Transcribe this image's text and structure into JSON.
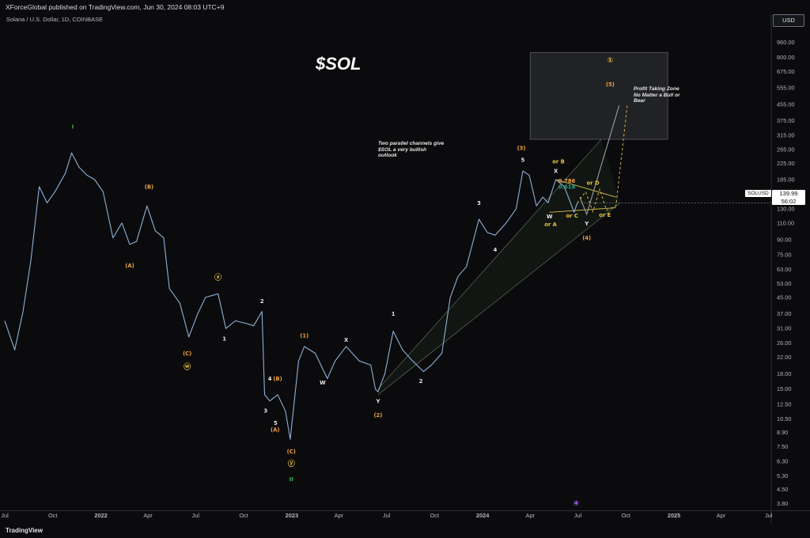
{
  "header": {
    "publisher": "XForceGlobal published on TradingView.com, Jun 30, 2024 08:03 UTC+9",
    "symbol_line": "Solana / U.S. Dollar, 1D, COINBASE",
    "currency_button": "USD"
  },
  "footer": {
    "brand": "TradingView"
  },
  "chart_data": {
    "type": "line",
    "title": "$SOL",
    "symbol_tag": "SOLUSD",
    "last_price": "139.99",
    "countdown": "56:02",
    "y_scale": "log",
    "ylim": [
      3.5,
      1200
    ],
    "y_ticks": [
      "960.00",
      "800.00",
      "675.00",
      "555.00",
      "455.00",
      "375.00",
      "315.00",
      "265.00",
      "225.00",
      "185.00",
      "155.00",
      "130.00",
      "110.00",
      "90.00",
      "75.00",
      "63.00",
      "53.00",
      "45.00",
      "37.00",
      "31.00",
      "26.00",
      "22.00",
      "18.00",
      "15.00",
      "12.50",
      "10.50",
      "8.90",
      "7.50",
      "6.30",
      "5.30",
      "4.50",
      "3.80"
    ],
    "x_ticks": [
      "Jul",
      "Oct",
      "2022",
      "Apr",
      "Jul",
      "Oct",
      "2023",
      "Apr",
      "Jul",
      "Oct",
      "2024",
      "Apr",
      "Jul",
      "Oct",
      "2025",
      "Apr",
      "Jul"
    ],
    "x_tick_dates": [
      "2021-07-01",
      "2021-10-01",
      "2022-01-01",
      "2022-04-01",
      "2022-07-01",
      "2022-10-01",
      "2023-01-01",
      "2023-04-01",
      "2023-07-01",
      "2023-10-01",
      "2024-01-01",
      "2024-04-01",
      "2024-07-01",
      "2024-10-01",
      "2025-01-01",
      "2025-04-01",
      "2025-07-01"
    ],
    "series": [
      {
        "values": [
          [
            "2021-07-01",
            34
          ],
          [
            "2021-07-20",
            24
          ],
          [
            "2021-08-05",
            38
          ],
          [
            "2021-08-20",
            70
          ],
          [
            "2021-09-05",
            170
          ],
          [
            "2021-09-20",
            140
          ],
          [
            "2021-10-05",
            160
          ],
          [
            "2021-10-25",
            200
          ],
          [
            "2021-11-06",
            255
          ],
          [
            "2021-11-20",
            215
          ],
          [
            "2021-12-05",
            195
          ],
          [
            "2021-12-20",
            185
          ],
          [
            "2022-01-05",
            160
          ],
          [
            "2022-01-24",
            92
          ],
          [
            "2022-02-10",
            110
          ],
          [
            "2022-02-25",
            85
          ],
          [
            "2022-03-10",
            88
          ],
          [
            "2022-03-30",
            135
          ],
          [
            "2022-04-15",
            100
          ],
          [
            "2022-05-01",
            92
          ],
          [
            "2022-05-12",
            50
          ],
          [
            "2022-06-01",
            42
          ],
          [
            "2022-06-18",
            28
          ],
          [
            "2022-07-05",
            37
          ],
          [
            "2022-07-20",
            45
          ],
          [
            "2022-08-13",
            47
          ],
          [
            "2022-08-28",
            31
          ],
          [
            "2022-09-15",
            34
          ],
          [
            "2022-10-05",
            33
          ],
          [
            "2022-10-20",
            32
          ],
          [
            "2022-11-05",
            38
          ],
          [
            "2022-11-10",
            14
          ],
          [
            "2022-11-20",
            13
          ],
          [
            "2022-12-05",
            14
          ],
          [
            "2022-12-20",
            11.5
          ],
          [
            "2022-12-29",
            8.2
          ],
          [
            "2023-01-14",
            21
          ],
          [
            "2023-01-25",
            25
          ],
          [
            "2023-02-15",
            23
          ],
          [
            "2023-03-10",
            17
          ],
          [
            "2023-03-25",
            21
          ],
          [
            "2023-04-15",
            25
          ],
          [
            "2023-05-10",
            21
          ],
          [
            "2023-06-01",
            20
          ],
          [
            "2023-06-10",
            15
          ],
          [
            "2023-06-15",
            14.5
          ],
          [
            "2023-06-28",
            18
          ],
          [
            "2023-07-14",
            30
          ],
          [
            "2023-08-01",
            24
          ],
          [
            "2023-08-20",
            21
          ],
          [
            "2023-09-10",
            18.5
          ],
          [
            "2023-09-25",
            20
          ],
          [
            "2023-10-15",
            23
          ],
          [
            "2023-10-31",
            45
          ],
          [
            "2023-11-15",
            58
          ],
          [
            "2023-12-01",
            65
          ],
          [
            "2023-12-25",
            115
          ],
          [
            "2024-01-10",
            98
          ],
          [
            "2024-01-25",
            95
          ],
          [
            "2024-02-15",
            110
          ],
          [
            "2024-03-05",
            130
          ],
          [
            "2024-03-18",
            205
          ],
          [
            "2024-03-30",
            195
          ],
          [
            "2024-04-13",
            135
          ],
          [
            "2024-04-25",
            150
          ],
          [
            "2024-05-05",
            140
          ],
          [
            "2024-05-20",
            185
          ],
          [
            "2024-06-05",
            170
          ],
          [
            "2024-06-15",
            145
          ],
          [
            "2024-06-24",
            125
          ],
          [
            "2024-06-30",
            139.99
          ]
        ]
      }
    ],
    "projections": [
      {
        "values": [
          [
            "2024-07-05",
            150
          ],
          [
            "2024-07-18",
            122
          ],
          [
            "2024-08-08",
            190
          ],
          [
            "2024-09-18",
            450
          ]
        ]
      },
      {
        "values": [
          [
            "2024-06-30",
            140
          ],
          [
            "2024-07-16",
            160
          ],
          [
            "2024-07-30",
            126
          ],
          [
            "2024-08-12",
            165
          ],
          [
            "2024-08-25",
            128
          ],
          [
            "2024-09-12",
            135
          ],
          [
            "2024-10-04",
            460
          ]
        ]
      }
    ],
    "channels": [
      {
        "from": [
          "2023-06-15",
          15
        ],
        "to": [
          "2024-08-15",
          300
        ]
      },
      {
        "from": [
          "2023-06-15",
          14
        ],
        "to": [
          "2024-09-20",
          140
        ]
      }
    ],
    "zone": {
      "x": [
        "2024-04-01",
        "2024-12-20"
      ],
      "y": [
        300,
        850
      ],
      "label": "Profit Taking Zone No Matter a Bull or Bear"
    },
    "note": "Two parallel channels give $SOL a very bullish outlook",
    "labels": [
      {
        "text": "I",
        "date": "2021-11-08",
        "price": 350,
        "color": "#3fb950"
      },
      {
        "text": "(B)",
        "date": "2022-04-03",
        "price": 170,
        "color": "#f0a040"
      },
      {
        "text": "(A)",
        "date": "2022-02-25",
        "price": 66,
        "color": "#f0a040"
      },
      {
        "text": "ⓧ",
        "date": "2022-08-13",
        "price": 57,
        "color": "#e8c040"
      },
      {
        "text": "(C)",
        "date": "2022-06-15",
        "price": 23,
        "color": "#f0a040"
      },
      {
        "text": "ⓦ",
        "date": "2022-06-15",
        "price": 19.5,
        "color": "#e8c040"
      },
      {
        "text": "1",
        "date": "2022-08-25",
        "price": 27.5,
        "color": "#e8e8e8"
      },
      {
        "text": "2",
        "date": "2022-11-05",
        "price": 43,
        "color": "#e8e8e8"
      },
      {
        "text": "4",
        "date": "2022-11-20",
        "price": 17,
        "color": "#e8e8e8"
      },
      {
        "text": "(B)",
        "date": "2022-12-05",
        "price": 17,
        "color": "#f0a040"
      },
      {
        "text": "3",
        "date": "2022-11-12",
        "price": 11.6,
        "color": "#e8e8e8"
      },
      {
        "text": "5",
        "date": "2022-12-01",
        "price": 10,
        "color": "#e8e8e8"
      },
      {
        "text": "(A)",
        "date": "2022-11-30",
        "price": 9.2,
        "color": "#f0a040"
      },
      {
        "text": "(C)",
        "date": "2022-12-31",
        "price": 7.1,
        "color": "#f0a040"
      },
      {
        "text": "ⓨ",
        "date": "2022-12-31",
        "price": 6.1,
        "color": "#e8c040"
      },
      {
        "text": "II",
        "date": "2022-12-31",
        "price": 5.1,
        "color": "#3fb950"
      },
      {
        "text": "(1)",
        "date": "2023-01-25",
        "price": 28.5,
        "color": "#f0a040"
      },
      {
        "text": "X",
        "date": "2023-04-15",
        "price": 27,
        "color": "#e8e8e8"
      },
      {
        "text": "W",
        "date": "2023-03-01",
        "price": 16.2,
        "color": "#e8e8e8"
      },
      {
        "text": "Y",
        "date": "2023-06-15",
        "price": 13,
        "color": "#e8e8e8"
      },
      {
        "text": "(2)",
        "date": "2023-06-15",
        "price": 11,
        "color": "#f0a040"
      },
      {
        "text": "1",
        "date": "2023-07-14",
        "price": 37,
        "color": "#e8e8e8"
      },
      {
        "text": "2",
        "date": "2023-09-05",
        "price": 16.5,
        "color": "#e8e8e8"
      },
      {
        "text": "3",
        "date": "2023-12-25",
        "price": 140,
        "color": "#e8e8e8"
      },
      {
        "text": "4",
        "date": "2024-01-25",
        "price": 80,
        "color": "#e8e8e8"
      },
      {
        "text": "(3)",
        "date": "2024-03-15",
        "price": 270,
        "color": "#f0a040"
      },
      {
        "text": "5",
        "date": "2024-03-18",
        "price": 235,
        "color": "#e8e8e8"
      },
      {
        "text": "or B",
        "date": "2024-05-25",
        "price": 230,
        "color": "#e8c040"
      },
      {
        "text": "X",
        "date": "2024-05-20",
        "price": 205,
        "color": "#e8e8e8"
      },
      {
        "text": "0.786",
        "date": "2024-06-10",
        "price": 182,
        "color": "#f0a040"
      },
      {
        "text": "0.618",
        "date": "2024-06-10",
        "price": 170,
        "color": "#2e9e8e"
      },
      {
        "text": "or D",
        "date": "2024-07-30",
        "price": 178,
        "color": "#e8c040"
      },
      {
        "text": "W",
        "date": "2024-05-08",
        "price": 119,
        "color": "#e8e8e8"
      },
      {
        "text": "or C",
        "date": "2024-06-20",
        "price": 120,
        "color": "#e8c040"
      },
      {
        "text": "or A",
        "date": "2024-05-10",
        "price": 108,
        "color": "#e8c040"
      },
      {
        "text": "Y",
        "date": "2024-07-18",
        "price": 109,
        "color": "#e8e8e8"
      },
      {
        "text": "or E",
        "date": "2024-08-22",
        "price": 121,
        "color": "#e8c040"
      },
      {
        "text": "(4)",
        "date": "2024-07-18",
        "price": 92,
        "color": "#f0a040"
      },
      {
        "text": "(5)",
        "date": "2024-09-01",
        "price": 580,
        "color": "#f0a040"
      },
      {
        "text": "①",
        "date": "2024-09-01",
        "price": 770,
        "color": "#e8c040"
      },
      {
        "text": "④",
        "date": "2024-06-28",
        "price": 3.8,
        "color": "#b070ff"
      }
    ]
  }
}
